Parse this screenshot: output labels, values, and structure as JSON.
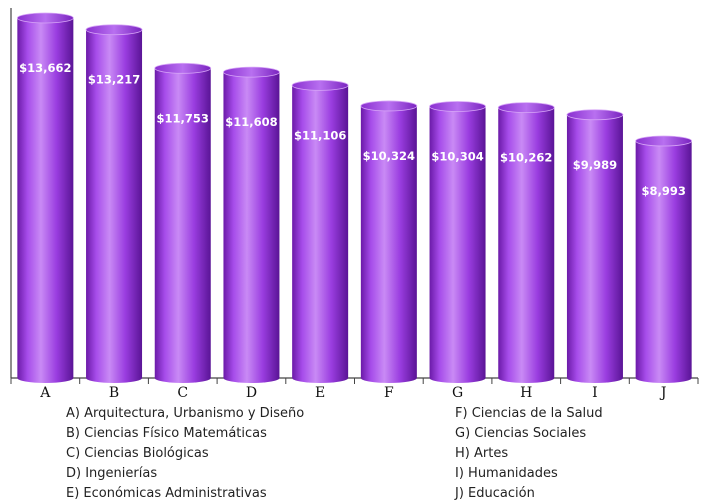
{
  "chart_data": {
    "type": "bar",
    "categories": [
      "A",
      "B",
      "C",
      "D",
      "E",
      "F",
      "G",
      "H",
      "I",
      "J"
    ],
    "values": [
      13662,
      13217,
      11753,
      11608,
      11106,
      10324,
      10304,
      10262,
      9989,
      8993
    ],
    "value_labels": [
      "$13,662",
      "$13,217",
      "$11,753",
      "$11,608",
      "$11,106",
      "$10,324",
      "$10,304",
      "$10,262",
      "$9,989",
      "$8,993"
    ],
    "ylim": [
      0,
      13662
    ],
    "grid": false,
    "bar_style": "3d-cylinder",
    "colors": {
      "bar_light": "#c47cf2",
      "bar_mid": "#9b3fe0",
      "bar_dark": "#5a1496",
      "label": "#ffffff"
    },
    "legend": [
      {
        "key": "A)",
        "text": "Arquitectura, Urbanismo y Diseño"
      },
      {
        "key": "B)",
        "text": "Ciencias Físico Matemáticas"
      },
      {
        "key": "C)",
        "text": "Ciencias Biológicas"
      },
      {
        "key": "D)",
        "text": "Ingenierías"
      },
      {
        "key": "E)",
        "text": "Económicas Administrativas"
      },
      {
        "key": "F)",
        "text": "Ciencias de la Salud"
      },
      {
        "key": "G)",
        "text": "Ciencias Sociales"
      },
      {
        "key": "H)",
        "text": "Artes"
      },
      {
        "key": "I)",
        "text": "Humanidades"
      },
      {
        "key": "J)",
        "text": "Educación"
      }
    ]
  }
}
